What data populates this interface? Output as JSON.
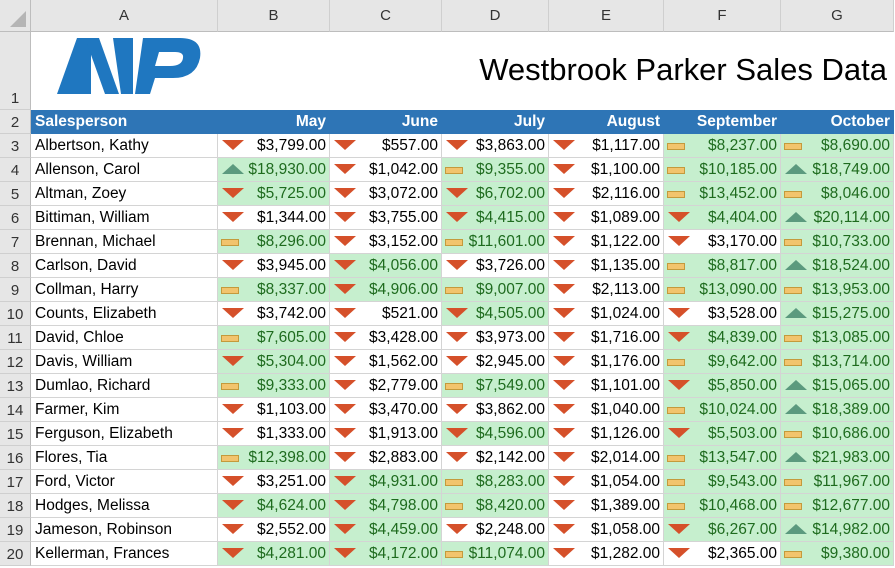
{
  "columns": [
    "A",
    "B",
    "C",
    "D",
    "E",
    "F",
    "G"
  ],
  "title": "Westbrook Parker Sales Data",
  "logo_text": "WP",
  "headers": [
    "Salesperson",
    "May",
    "June",
    "July",
    "August",
    "September",
    "October"
  ],
  "colors": {
    "header": "#2e75b6",
    "highlight": "#c6efce",
    "down": "#d5502a",
    "flat": "#f2c46d",
    "up": "#5b9a7e"
  },
  "rules": {
    "highlight_above": 4000,
    "icon_set": "3-triangles"
  },
  "rows": [
    {
      "name": "Albertson, Kathy",
      "values": [
        3799,
        557,
        3863,
        1117,
        8237,
        8690
      ]
    },
    {
      "name": "Allenson, Carol",
      "values": [
        18930,
        1042,
        9355,
        1100,
        10185,
        18749
      ]
    },
    {
      "name": "Altman, Zoey",
      "values": [
        5725,
        3072,
        6702,
        2116,
        13452,
        8046
      ]
    },
    {
      "name": "Bittiman, William",
      "values": [
        1344,
        3755,
        4415,
        1089,
        4404,
        20114
      ]
    },
    {
      "name": "Brennan, Michael",
      "values": [
        8296,
        3152,
        11601,
        1122,
        3170,
        10733
      ]
    },
    {
      "name": "Carlson, David",
      "values": [
        3945,
        4056,
        3726,
        1135,
        8817,
        18524
      ]
    },
    {
      "name": "Collman, Harry",
      "values": [
        8337,
        4906,
        9007,
        2113,
        13090,
        13953
      ]
    },
    {
      "name": "Counts, Elizabeth",
      "values": [
        3742,
        521,
        4505,
        1024,
        3528,
        15275
      ]
    },
    {
      "name": "David, Chloe",
      "values": [
        7605,
        3428,
        3973,
        1716,
        4839,
        13085
      ]
    },
    {
      "name": "Davis, William",
      "values": [
        5304,
        1562,
        2945,
        1176,
        9642,
        13714
      ]
    },
    {
      "name": "Dumlao, Richard",
      "values": [
        9333,
        2779,
        7549,
        1101,
        5850,
        15065
      ]
    },
    {
      "name": "Farmer, Kim",
      "values": [
        1103,
        3470,
        3862,
        1040,
        10024,
        18389
      ]
    },
    {
      "name": "Ferguson, Elizabeth",
      "values": [
        1333,
        1913,
        4596,
        1126,
        5503,
        10686
      ]
    },
    {
      "name": "Flores, Tia",
      "values": [
        12398,
        2883,
        2142,
        2014,
        13547,
        21983
      ]
    },
    {
      "name": "Ford, Victor",
      "values": [
        3251,
        4931,
        8283,
        1054,
        9543,
        11967
      ]
    },
    {
      "name": "Hodges, Melissa",
      "values": [
        4624,
        4798,
        8420,
        1389,
        10468,
        12677
      ]
    },
    {
      "name": "Jameson, Robinson",
      "values": [
        2552,
        4459,
        2248,
        1058,
        6267,
        14982
      ]
    },
    {
      "name": "Kellerman, Frances",
      "values": [
        4281,
        4172,
        11074,
        1282,
        2365,
        9380
      ]
    }
  ]
}
